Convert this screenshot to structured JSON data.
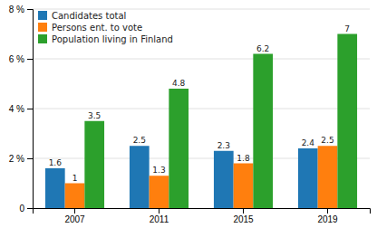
{
  "chart_data": {
    "type": "bar",
    "categories": [
      "2007",
      "2011",
      "2015",
      "2019"
    ],
    "series": [
      {
        "name": "Candidates total",
        "values": [
          1.6,
          2.5,
          2.3,
          2.4
        ]
      },
      {
        "name": "Persons ent. to vote",
        "values": [
          1.0,
          1.3,
          1.8,
          2.5
        ]
      },
      {
        "name": "Population living in Finland",
        "values": [
          3.5,
          4.8,
          6.2,
          7.0
        ]
      }
    ],
    "ylim": [
      0,
      8
    ],
    "yticks": [
      0,
      {
        "value": 2,
        "label": "2 %"
      },
      {
        "value": 4,
        "label": "4 %"
      },
      {
        "value": 6,
        "label": "6 %"
      },
      {
        "value": 8,
        "label": "8 %"
      }
    ],
    "grid": true,
    "legend": "upper left",
    "data_labels": true
  }
}
